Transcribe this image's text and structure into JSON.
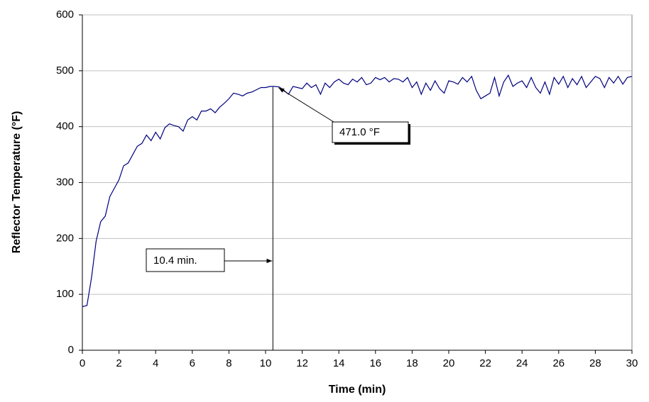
{
  "chart_data": {
    "type": "line",
    "x_label": "Time (min)",
    "y_label": "Reflector Temperature (°F)",
    "x": [
      0,
      0.25,
      0.5,
      0.75,
      1,
      1.25,
      1.5,
      1.75,
      2,
      2.25,
      2.5,
      2.75,
      3,
      3.25,
      3.5,
      3.75,
      4,
      4.25,
      4.5,
      4.75,
      5,
      5.25,
      5.5,
      5.75,
      6,
      6.25,
      6.5,
      6.75,
      7,
      7.25,
      7.5,
      7.75,
      8,
      8.25,
      8.5,
      8.75,
      9,
      9.25,
      9.5,
      9.75,
      10,
      10.25,
      10.5,
      10.75,
      11,
      11.25,
      11.5,
      11.75,
      12,
      12.25,
      12.5,
      12.75,
      13,
      13.25,
      13.5,
      13.75,
      14,
      14.25,
      14.5,
      14.75,
      15,
      15.25,
      15.5,
      15.75,
      16,
      16.25,
      16.5,
      16.75,
      17,
      17.25,
      17.5,
      17.75,
      18,
      18.25,
      18.5,
      18.75,
      19,
      19.25,
      19.5,
      19.75,
      20,
      20.25,
      20.5,
      20.75,
      21,
      21.25,
      21.5,
      21.75,
      22,
      22.25,
      22.5,
      22.75,
      23,
      23.25,
      23.5,
      23.75,
      24,
      24.25,
      24.5,
      24.75,
      25,
      25.25,
      25.5,
      25.75,
      26,
      26.25,
      26.5,
      26.75,
      27,
      27.25,
      27.5,
      27.75,
      28,
      28.25,
      28.5,
      28.75,
      29,
      29.25,
      29.5,
      29.75,
      30
    ],
    "values": [
      78,
      80,
      130,
      195,
      230,
      240,
      275,
      290,
      305,
      330,
      335,
      350,
      365,
      370,
      385,
      375,
      390,
      378,
      398,
      405,
      402,
      400,
      392,
      412,
      418,
      412,
      428,
      428,
      432,
      425,
      435,
      442,
      450,
      460,
      458,
      455,
      460,
      462,
      466,
      470,
      470,
      472,
      472,
      471,
      465,
      458,
      472,
      470,
      468,
      478,
      470,
      475,
      458,
      478,
      470,
      480,
      485,
      478,
      475,
      485,
      480,
      488,
      475,
      478,
      488,
      484,
      488,
      480,
      486,
      485,
      480,
      488,
      470,
      480,
      458,
      478,
      465,
      482,
      468,
      460,
      482,
      480,
      476,
      488,
      480,
      490,
      465,
      450,
      455,
      460,
      488,
      455,
      480,
      492,
      472,
      478,
      482,
      470,
      488,
      470,
      460,
      480,
      458,
      488,
      476,
      490,
      470,
      486,
      475,
      490,
      470,
      480,
      490,
      486,
      470,
      488,
      478,
      490,
      476,
      488,
      490
    ],
    "color": "#000080",
    "xlim": [
      0,
      30
    ],
    "xticks": [
      0,
      2,
      4,
      6,
      8,
      10,
      12,
      14,
      16,
      18,
      20,
      22,
      24,
      26,
      28,
      30
    ],
    "ylim": [
      0,
      600
    ],
    "yticks": [
      0,
      100,
      200,
      300,
      400,
      500,
      600
    ],
    "grid": true,
    "annotations": [
      {
        "label": "10.4 min.",
        "x": 10.4
      },
      {
        "label": "471.0 °F",
        "y": 471.0
      }
    ]
  }
}
